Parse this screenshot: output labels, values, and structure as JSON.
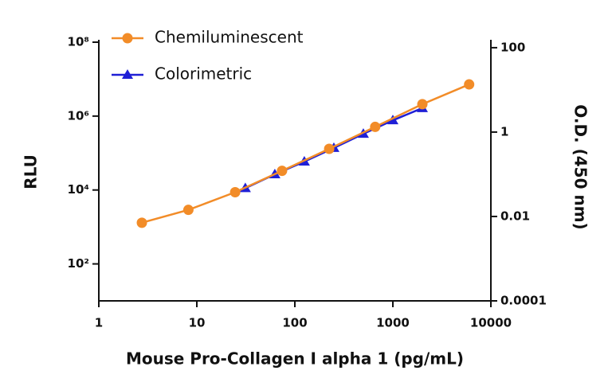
{
  "chart_data": {
    "type": "line",
    "x_label": "Mouse Pro-Collagen I alpha 1 (pg/mL)",
    "y_label": "RLU",
    "y2_label": "O.D. (450 nm)",
    "xscale": "log",
    "yscale": "log",
    "y2scale": "log",
    "xlim": [
      1,
      10000
    ],
    "xticks": [
      1,
      10,
      100,
      1000,
      10000
    ],
    "ylim": [
      10,
      100000000
    ],
    "yticks": [
      {
        "value": 100,
        "label": "10²"
      },
      {
        "value": 10000,
        "label": "10⁴"
      },
      {
        "value": 1000000,
        "label": "10⁶"
      },
      {
        "value": 100000000,
        "label": "10⁸"
      }
    ],
    "y2lim": [
      0.0001,
      135
    ],
    "y2ticks": [
      0.0001,
      0.01,
      1,
      100
    ],
    "legend": "upper left",
    "series": [
      {
        "name": "Chemiluminescent",
        "color": "#f28c28",
        "marker": "circle",
        "x": [
          2.75,
          8.2,
          24.6,
          74,
          224,
          660,
          2000,
          6000
        ],
        "values": [
          1300,
          2900,
          8700,
          33000,
          130000,
          510000,
          2100000,
          7200000
        ]
      },
      {
        "name": "Colorimetric",
        "color": "#1f1fd6",
        "marker": "triangle",
        "axis": "y2",
        "x": [
          31.25,
          62.5,
          125,
          250,
          500,
          1000,
          2000
        ],
        "values": [
          0.047,
          0.1,
          0.2,
          0.42,
          0.91,
          1.9,
          3.7
        ]
      }
    ]
  }
}
